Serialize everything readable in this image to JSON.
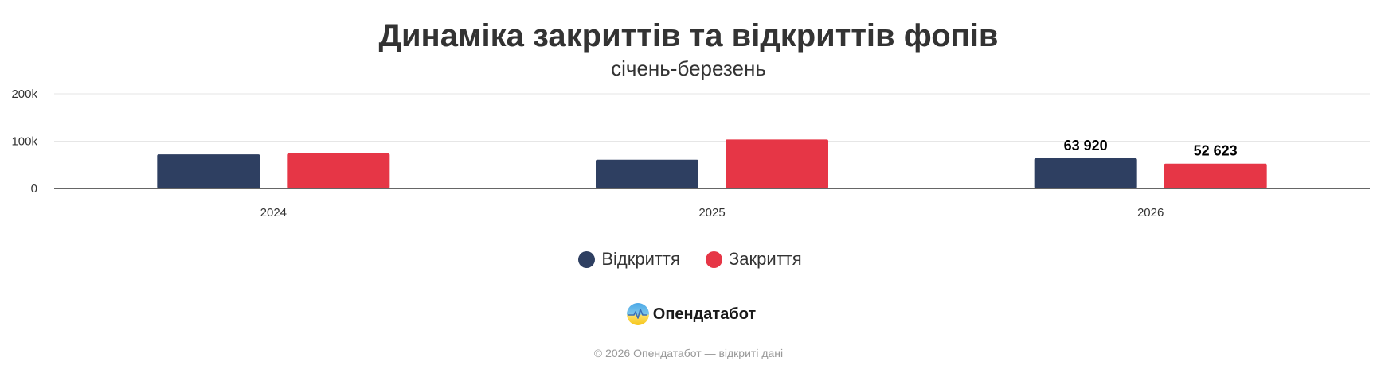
{
  "chart_data": {
    "type": "bar",
    "title": "Динаміка закриттів та відкриттів фопів",
    "subtitle": "січень-березень",
    "categories": [
      "2024",
      "2025",
      "2026"
    ],
    "series": [
      {
        "name": "Відкриття",
        "color": "#2e3f61",
        "values": [
          72000,
          61000,
          63920
        ]
      },
      {
        "name": "Закриття",
        "color": "#e63646",
        "values": [
          74000,
          103500,
          52623
        ]
      }
    ],
    "data_labels": [
      {
        "series": 0,
        "category": 2,
        "text": "63 920"
      },
      {
        "series": 1,
        "category": 2,
        "text": "52 623"
      }
    ],
    "y_ticks": [
      {
        "value": 0,
        "label": "0"
      },
      {
        "value": 100000,
        "label": "100k"
      },
      {
        "value": 200000,
        "label": "200k"
      }
    ],
    "ylim": [
      0,
      200000
    ],
    "grid": true,
    "legend_position": "bottom-center"
  },
  "branding": {
    "logo_icon": "opendatabot-logo-icon",
    "name": "Опендатабот"
  },
  "footer": {
    "text": "© 2026 Опендатабот — відкриті дані"
  },
  "colors": {
    "opening": "#2e3f61",
    "closing": "#e63646",
    "title": "#333333",
    "footer": "#999999"
  }
}
